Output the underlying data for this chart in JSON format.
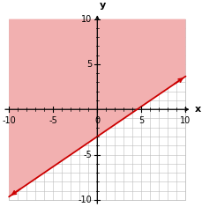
{
  "xlim": [
    -10.5,
    11
  ],
  "ylim": [
    -10.5,
    11
  ],
  "xmin": -10,
  "xmax": 10,
  "ymin": -10,
  "ymax": 10,
  "xticks_major": [
    -10,
    -5,
    0,
    5,
    10
  ],
  "yticks_major": [
    -10,
    -5,
    5,
    10
  ],
  "slope": 0.6667,
  "intercept": -3,
  "line_color": "#cc0000",
  "shade_color": "#f2b0b0",
  "shade_alpha": 1.0,
  "background_color": "#ffffff",
  "grid_color": "#bbbbbb",
  "axis_color": "#000000",
  "xlabel": "x",
  "ylabel": "y",
  "figsize": [
    2.29,
    2.35
  ],
  "dpi": 100,
  "tick_label_fontsize": 7
}
